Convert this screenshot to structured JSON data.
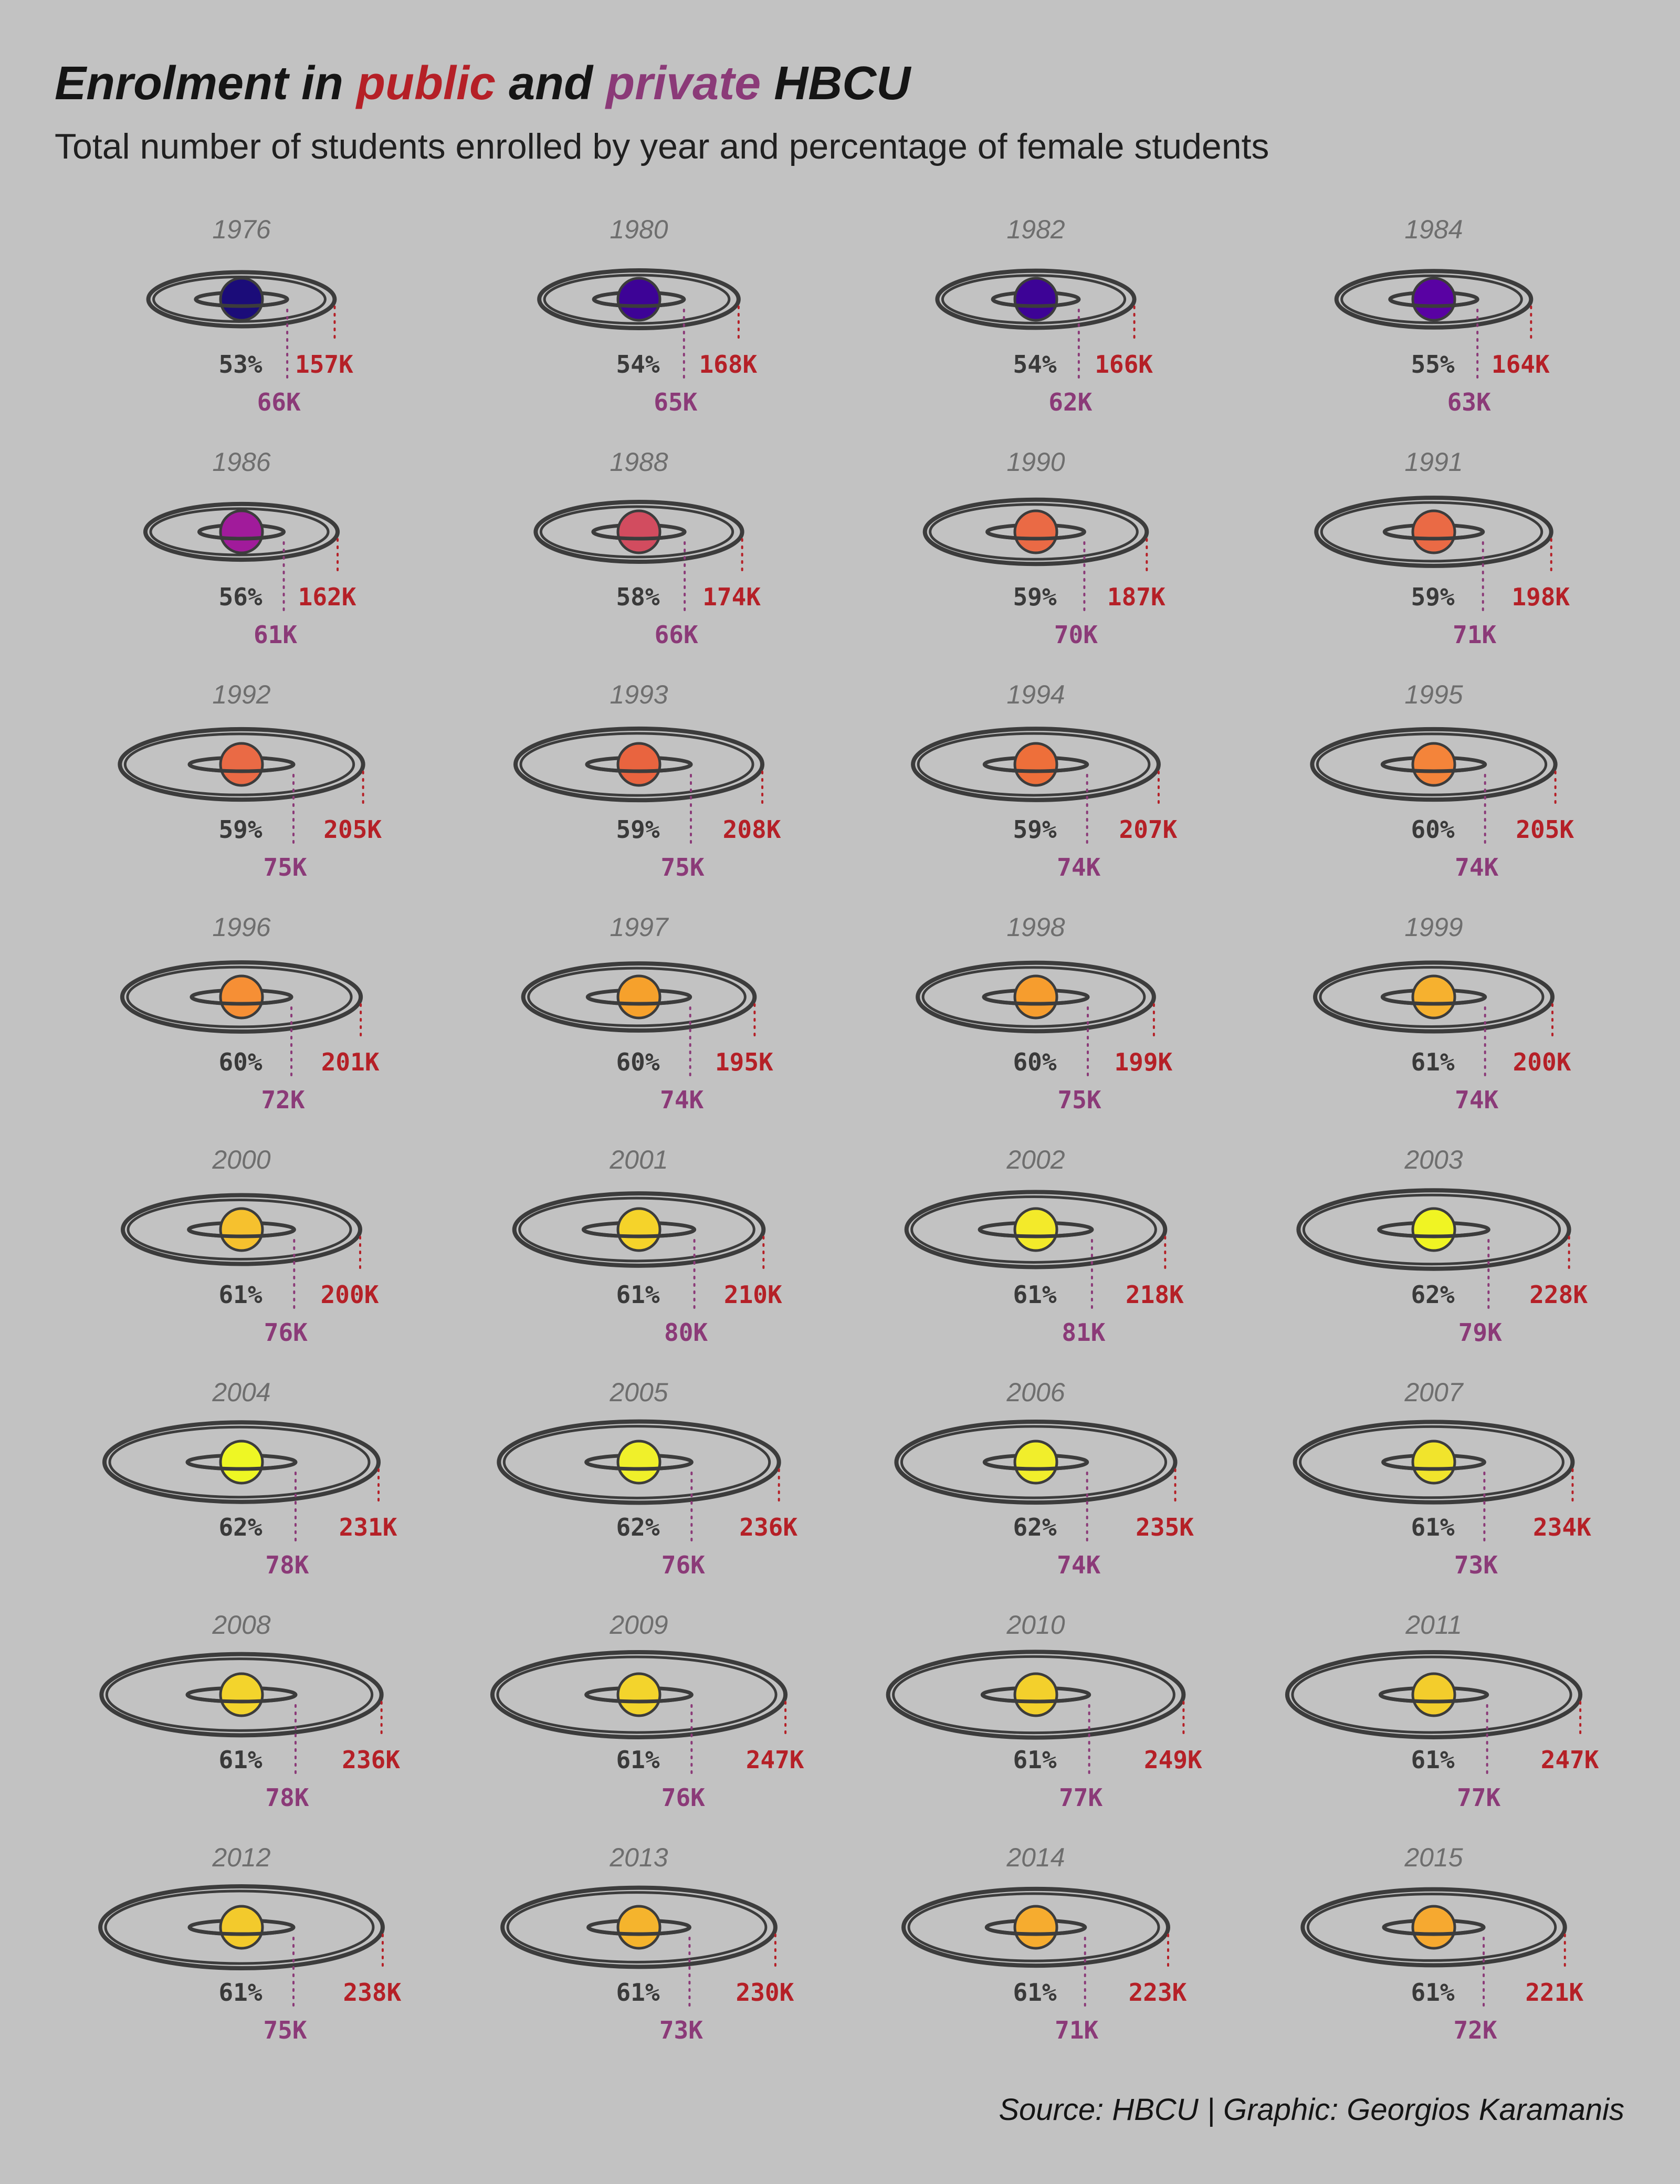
{
  "title": {
    "prefix": "Enrolment in",
    "public_word": "public",
    "middle": "and",
    "private_word": "private",
    "suffix": "HBCU"
  },
  "subtitle": "Total number of students enrolled by year and percentage of female students",
  "caption": "Source: HBCU | Graphic: Georgios Karamanis",
  "colors": {
    "background": "#c2c2c2",
    "public": "#b52027",
    "private": "#8b3a78",
    "female_pct": "#3a3a3a",
    "year": "#6e6e6e",
    "ring": "#3c3c3c"
  },
  "chart_data": {
    "type": "other",
    "encoding": "planet color = percentage of female students; outer ring width = public enrolment; inner ring width = private enrolment",
    "units": "students (K = thousands)",
    "records": [
      {
        "year": "1976",
        "female_pct": 53,
        "female_label": "53%",
        "public": 157,
        "public_label": "157K",
        "private": 66,
        "private_label": "66K",
        "planet_color": "#1b0c79"
      },
      {
        "year": "1980",
        "female_pct": 54,
        "female_label": "54%",
        "public": 168,
        "public_label": "168K",
        "private": 65,
        "private_label": "65K",
        "planet_color": "#3d0396"
      },
      {
        "year": "1982",
        "female_pct": 54,
        "female_label": "54%",
        "public": 166,
        "public_label": "166K",
        "private": 62,
        "private_label": "62K",
        "planet_color": "#3d0396"
      },
      {
        "year": "1984",
        "female_pct": 55,
        "female_label": "55%",
        "public": 164,
        "public_label": "164K",
        "private": 63,
        "private_label": "63K",
        "planet_color": "#5902a3"
      },
      {
        "year": "1986",
        "female_pct": 56,
        "female_label": "56%",
        "public": 162,
        "public_label": "162K",
        "private": 61,
        "private_label": "61K",
        "planet_color": "#a11b9b"
      },
      {
        "year": "1988",
        "female_pct": 58,
        "female_label": "58%",
        "public": 174,
        "public_label": "174K",
        "private": 66,
        "private_label": "66K",
        "planet_color": "#d24c5f"
      },
      {
        "year": "1990",
        "female_pct": 59,
        "female_label": "59%",
        "public": 187,
        "public_label": "187K",
        "private": 70,
        "private_label": "70K",
        "planet_color": "#ea6a45"
      },
      {
        "year": "1991",
        "female_pct": 59,
        "female_label": "59%",
        "public": 198,
        "public_label": "198K",
        "private": 71,
        "private_label": "71K",
        "planet_color": "#ea6a45"
      },
      {
        "year": "1992",
        "female_pct": 59,
        "female_label": "59%",
        "public": 205,
        "public_label": "205K",
        "private": 75,
        "private_label": "75K",
        "planet_color": "#ea6a45"
      },
      {
        "year": "1993",
        "female_pct": 59,
        "female_label": "59%",
        "public": 208,
        "public_label": "208K",
        "private": 75,
        "private_label": "75K",
        "planet_color": "#e9643f"
      },
      {
        "year": "1994",
        "female_pct": 59,
        "female_label": "59%",
        "public": 207,
        "public_label": "207K",
        "private": 74,
        "private_label": "74K",
        "planet_color": "#ee6f3a"
      },
      {
        "year": "1995",
        "female_pct": 60,
        "female_label": "60%",
        "public": 205,
        "public_label": "205K",
        "private": 74,
        "private_label": "74K",
        "planet_color": "#f4843a"
      },
      {
        "year": "1996",
        "female_pct": 60,
        "female_label": "60%",
        "public": 201,
        "public_label": "201K",
        "private": 72,
        "private_label": "72K",
        "planet_color": "#f68f35"
      },
      {
        "year": "1997",
        "female_pct": 60,
        "female_label": "60%",
        "public": 195,
        "public_label": "195K",
        "private": 74,
        "private_label": "74K",
        "planet_color": "#f6a12c"
      },
      {
        "year": "1998",
        "female_pct": 60,
        "female_label": "60%",
        "public": 199,
        "public_label": "199K",
        "private": 75,
        "private_label": "75K",
        "planet_color": "#f69d2e"
      },
      {
        "year": "1999",
        "female_pct": 61,
        "female_label": "61%",
        "public": 200,
        "public_label": "200K",
        "private": 74,
        "private_label": "74K",
        "planet_color": "#f6b12f"
      },
      {
        "year": "2000",
        "female_pct": 61,
        "female_label": "61%",
        "public": 200,
        "public_label": "200K",
        "private": 76,
        "private_label": "76K",
        "planet_color": "#f6c12e"
      },
      {
        "year": "2001",
        "female_pct": 61,
        "female_label": "61%",
        "public": 210,
        "public_label": "210K",
        "private": 80,
        "private_label": "80K",
        "planet_color": "#f5d32a"
      },
      {
        "year": "2002",
        "female_pct": 61,
        "female_label": "61%",
        "public": 218,
        "public_label": "218K",
        "private": 81,
        "private_label": "81K",
        "planet_color": "#f3ea2a"
      },
      {
        "year": "2003",
        "female_pct": 62,
        "female_label": "62%",
        "public": 228,
        "public_label": "228K",
        "private": 79,
        "private_label": "79K",
        "planet_color": "#f0f423"
      },
      {
        "year": "2004",
        "female_pct": 62,
        "female_label": "62%",
        "public": 231,
        "public_label": "231K",
        "private": 78,
        "private_label": "78K",
        "planet_color": "#eef724"
      },
      {
        "year": "2005",
        "female_pct": 62,
        "female_label": "62%",
        "public": 236,
        "public_label": "236K",
        "private": 76,
        "private_label": "76K",
        "planet_color": "#f0f02a"
      },
      {
        "year": "2006",
        "female_pct": 62,
        "female_label": "62%",
        "public": 235,
        "public_label": "235K",
        "private": 74,
        "private_label": "74K",
        "planet_color": "#f1ee2b"
      },
      {
        "year": "2007",
        "female_pct": 61,
        "female_label": "61%",
        "public": 234,
        "public_label": "234K",
        "private": 73,
        "private_label": "73K",
        "planet_color": "#f1e42c"
      },
      {
        "year": "2008",
        "female_pct": 61,
        "female_label": "61%",
        "public": 236,
        "public_label": "236K",
        "private": 78,
        "private_label": "78K",
        "planet_color": "#f3d42c"
      },
      {
        "year": "2009",
        "female_pct": 61,
        "female_label": "61%",
        "public": 247,
        "public_label": "247K",
        "private": 76,
        "private_label": "76K",
        "planet_color": "#f3d42c"
      },
      {
        "year": "2010",
        "female_pct": 61,
        "female_label": "61%",
        "public": 249,
        "public_label": "249K",
        "private": 77,
        "private_label": "77K",
        "planet_color": "#f3d02c"
      },
      {
        "year": "2011",
        "female_pct": 61,
        "female_label": "61%",
        "public": 247,
        "public_label": "247K",
        "private": 77,
        "private_label": "77K",
        "planet_color": "#f3cd2c"
      },
      {
        "year": "2012",
        "female_pct": 61,
        "female_label": "61%",
        "public": 238,
        "public_label": "238K",
        "private": 75,
        "private_label": "75K",
        "planet_color": "#f3ca2c"
      },
      {
        "year": "2013",
        "female_pct": 61,
        "female_label": "61%",
        "public": 230,
        "public_label": "230K",
        "private": 73,
        "private_label": "73K",
        "planet_color": "#f5b42d"
      },
      {
        "year": "2014",
        "female_pct": 61,
        "female_label": "61%",
        "public": 223,
        "public_label": "223K",
        "private": 71,
        "private_label": "71K",
        "planet_color": "#f6ac2f"
      },
      {
        "year": "2015",
        "female_pct": 61,
        "female_label": "61%",
        "public": 221,
        "public_label": "221K",
        "private": 72,
        "private_label": "72K",
        "planet_color": "#f6a930"
      }
    ]
  }
}
